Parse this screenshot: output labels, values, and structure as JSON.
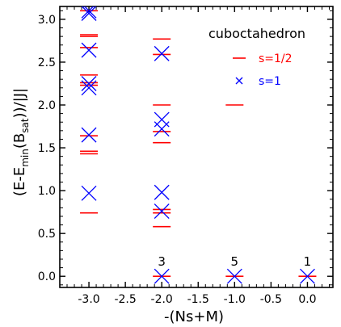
{
  "chart_data": {
    "type": "scatter",
    "title": "cuboctahedron",
    "xlabel": "-(Ns+M)",
    "ylabel_parts": {
      "a": "(E-E",
      "sub1": "min",
      "b": "(B",
      "sub2": "sat",
      "c": "))/|J|"
    },
    "xlim": [
      -3.4,
      0.35
    ],
    "ylim": [
      -0.13,
      3.15
    ],
    "x_ticks": [
      "-3.0",
      "-2.5",
      "-2.0",
      "-1.5",
      "-1.0",
      "-0.5",
      "0.0"
    ],
    "x_tick_values": [
      -3.0,
      -2.5,
      -2.0,
      -1.5,
      -1.0,
      -0.5,
      0.0
    ],
    "y_ticks": [
      "0.0",
      "0.5",
      "1.0",
      "1.5",
      "2.0",
      "2.5",
      "3.0"
    ],
    "y_tick_values": [
      0.0,
      0.5,
      1.0,
      1.5,
      2.0,
      2.5,
      3.0
    ],
    "grid": false,
    "legend_position": "top-right",
    "series": [
      {
        "name": "s=1/2",
        "marker": "dash",
        "color": "#ff0000",
        "points": [
          {
            "x": -3.0,
            "y": 0.74
          },
          {
            "x": -3.0,
            "y": 1.43
          },
          {
            "x": -3.0,
            "y": 1.46
          },
          {
            "x": -3.0,
            "y": 1.64
          },
          {
            "x": -3.0,
            "y": 2.23
          },
          {
            "x": -3.0,
            "y": 2.26
          },
          {
            "x": -3.0,
            "y": 2.35
          },
          {
            "x": -3.0,
            "y": 2.67
          },
          {
            "x": -3.0,
            "y": 2.8
          },
          {
            "x": -3.0,
            "y": 2.82
          },
          {
            "x": -3.0,
            "y": 3.1
          },
          {
            "x": -2.0,
            "y": 0.0
          },
          {
            "x": -2.0,
            "y": 0.58
          },
          {
            "x": -2.0,
            "y": 0.74
          },
          {
            "x": -2.0,
            "y": 0.78
          },
          {
            "x": -2.0,
            "y": 1.56
          },
          {
            "x": -2.0,
            "y": 1.69
          },
          {
            "x": -2.0,
            "y": 2.0
          },
          {
            "x": -2.0,
            "y": 2.59
          },
          {
            "x": -2.0,
            "y": 2.77
          },
          {
            "x": -1.0,
            "y": 0.0
          },
          {
            "x": -1.0,
            "y": 2.0
          },
          {
            "x": 0.0,
            "y": 0.0
          }
        ]
      },
      {
        "name": "s=1",
        "marker": "x",
        "color": "#0000ff",
        "points": [
          {
            "x": -3.0,
            "y": 0.97
          },
          {
            "x": -3.0,
            "y": 1.65
          },
          {
            "x": -3.0,
            "y": 2.2
          },
          {
            "x": -3.0,
            "y": 2.25
          },
          {
            "x": -3.0,
            "y": 2.64
          },
          {
            "x": -3.0,
            "y": 3.07
          },
          {
            "x": -3.0,
            "y": 3.1
          },
          {
            "x": -2.0,
            "y": 0.0
          },
          {
            "x": -2.0,
            "y": 0.76
          },
          {
            "x": -2.0,
            "y": 0.98
          },
          {
            "x": -2.0,
            "y": 1.72
          },
          {
            "x": -2.0,
            "y": 1.83
          },
          {
            "x": -2.0,
            "y": 2.6
          },
          {
            "x": -1.0,
            "y": 0.0
          },
          {
            "x": 0.0,
            "y": 0.0
          }
        ]
      }
    ],
    "annotations": [
      {
        "x": -2.0,
        "y": 0.0,
        "text": "3"
      },
      {
        "x": -1.0,
        "y": 0.0,
        "text": "5"
      },
      {
        "x": 0.0,
        "y": 0.0,
        "text": "1"
      }
    ]
  }
}
